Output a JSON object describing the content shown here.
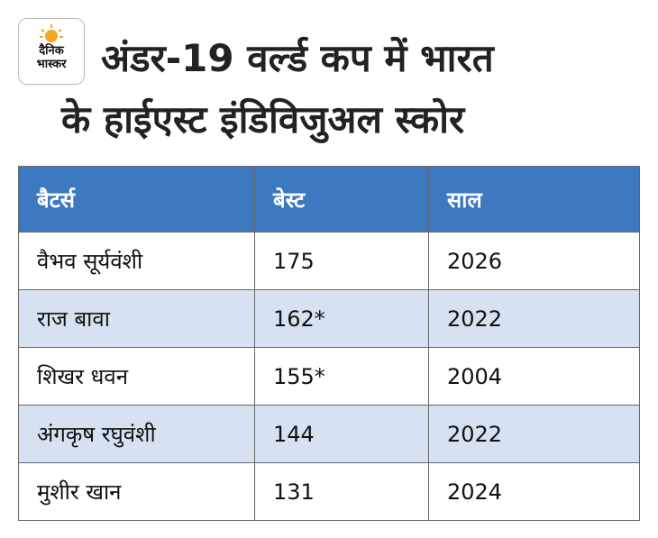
{
  "logo": {
    "lines": [
      "दैनिक",
      "भास्कर"
    ]
  },
  "header": {
    "title": [
      "अंडर-19 वर्ल्ड कप में भारत",
      "के हाईएस्ट इंडिविजुअल स्कोर"
    ]
  },
  "table": {
    "columns": [
      "बैटर्स",
      "बेस्ट",
      "साल"
    ],
    "rows": [
      [
        "वैभव सूर्यवंशी",
        "175",
        "2026"
      ],
      [
        "राज बावा",
        "162*",
        "2022"
      ],
      [
        "शिखर धवन",
        "155*",
        "2004"
      ],
      [
        "अंगकृष रघुवंशी",
        "144",
        "2022"
      ],
      [
        "मुशीर खान",
        "131",
        "2024"
      ]
    ]
  }
}
